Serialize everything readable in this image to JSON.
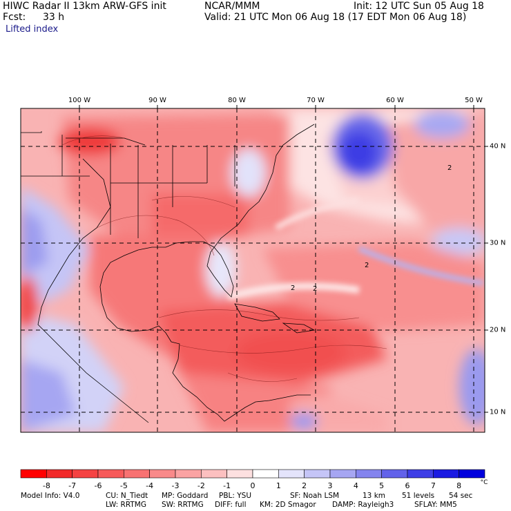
{
  "header": {
    "line1_left": "HIWC Radar II 13km ARW-GFS init",
    "line1_mid": "NCAR/MMM",
    "line1_right": "Init: 12 UTC Sun 05 Aug 18",
    "fcst_label": "Fcst:",
    "fcst_value": "33 h",
    "valid": "Valid: 21 UTC Mon 06 Aug 18 (17 EDT Mon 06 Aug 18)",
    "field": "Lifted index"
  },
  "map": {
    "lon_labels": [
      "100 W",
      "90 W",
      "80 W",
      "70 W",
      "60 W",
      "50 W"
    ],
    "lat_labels": [
      "40 N",
      "30 N",
      "20 N",
      "10 N"
    ],
    "contour_labels": [
      "2",
      "2",
      "2",
      "2"
    ]
  },
  "colorbar": {
    "labels": [
      "-8",
      "-7",
      "-6",
      "-5",
      "-4",
      "-3",
      "-2",
      "-1",
      "0",
      "1",
      "2",
      "3",
      "4",
      "5",
      "6",
      "7",
      "8"
    ],
    "unit": "°C",
    "colors": [
      "#ff0000",
      "#f22a2a",
      "#f54242",
      "#f75a5a",
      "#f87272",
      "#f98a8a",
      "#fba3a3",
      "#fcc0c0",
      "#fde0e0",
      "#ffffff",
      "#e4e4fb",
      "#c5c5f7",
      "#a6a6f2",
      "#8484ee",
      "#6262ea",
      "#3e3ee6",
      "#1a1ae2",
      "#0000dd"
    ]
  },
  "footer": {
    "line1": [
      "Model Info: V4.0",
      "CU: N_Tiedt",
      "MP: Goddard",
      "PBL: YSU",
      "SF: Noah LSM",
      "13 km",
      "51 levels",
      "54 sec"
    ],
    "line2": [
      "LW: RRTMG",
      "SW: RRTMG",
      "DIFF: full",
      "KM: 2D Smagor",
      "DAMP: Rayleigh3",
      "SFLAY: MM5"
    ]
  }
}
